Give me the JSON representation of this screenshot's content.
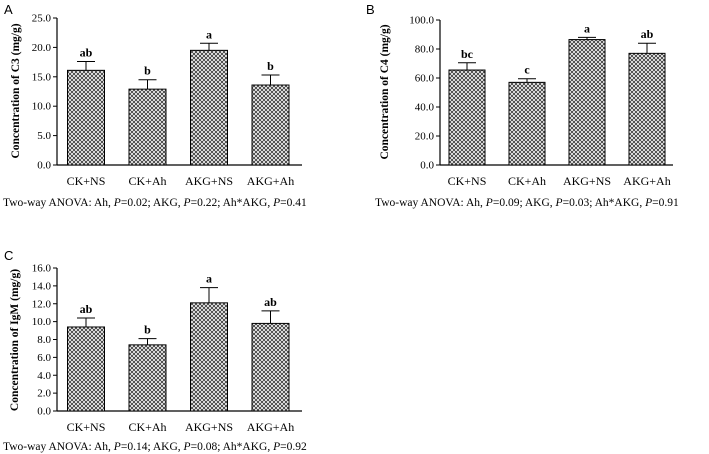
{
  "chart_data": [
    {
      "type": "bar",
      "panel": "A",
      "categories": [
        "CK+NS",
        "CK+Ah",
        "AKG+NS",
        "AKG+Ah"
      ],
      "values": [
        16.1,
        12.9,
        19.5,
        13.6
      ],
      "errors": [
        1.5,
        1.6,
        1.2,
        1.7
      ],
      "significance": [
        "ab",
        "b",
        "a",
        "b"
      ],
      "ylabel": "Concentration of C3 (mg/g)",
      "ylim": [
        0,
        25
      ],
      "yticks": [
        "0.0",
        "5.0",
        "10.0",
        "15.0",
        "20.0",
        "25.0"
      ],
      "caption": [
        "Two-way ANOVA: Ah, ",
        "P",
        "=0.02; AKG, ",
        "P",
        "=0.22; Ah*AKG, ",
        "P",
        "=0.41"
      ]
    },
    {
      "type": "bar",
      "panel": "B",
      "categories": [
        "CK+NS",
        "CK+Ah",
        "AKG+NS",
        "AKG+Ah"
      ],
      "values": [
        65.5,
        57.0,
        86.5,
        77.0
      ],
      "errors": [
        5.0,
        2.5,
        1.5,
        7.0
      ],
      "significance": [
        "bc",
        "c",
        "a",
        "ab"
      ],
      "ylabel": "Concentration of C4 (mg/g)",
      "ylim": [
        0,
        100
      ],
      "yticks": [
        "0.0",
        "20.0",
        "40.0",
        "60.0",
        "80.0",
        "100.0"
      ],
      "caption": [
        "Two-way ANOVA: Ah, ",
        "P",
        "=0.09; AKG, ",
        "P",
        "=0.03; Ah*AKG, ",
        "P",
        "=0.91"
      ]
    },
    {
      "type": "bar",
      "panel": "C",
      "categories": [
        "CK+NS",
        "CK+Ah",
        "AKG+NS",
        "AKG+Ah"
      ],
      "values": [
        9.4,
        7.4,
        12.1,
        9.8
      ],
      "errors": [
        1.0,
        0.7,
        1.7,
        1.4
      ],
      "significance": [
        "ab",
        "b",
        "a",
        "ab"
      ],
      "ylabel": "Concentration of IgM (mg/g)",
      "ylim": [
        0,
        16
      ],
      "yticks": [
        "0.0",
        "2.0",
        "4.0",
        "6.0",
        "8.0",
        "10.0",
        "12.0",
        "14.0",
        "16.0"
      ],
      "caption": [
        "Two-way ANOVA: Ah, ",
        "P",
        "=0.14; AKG, ",
        "P",
        "=0.08; Ah*AKG, ",
        "P",
        "=0.92"
      ]
    }
  ]
}
